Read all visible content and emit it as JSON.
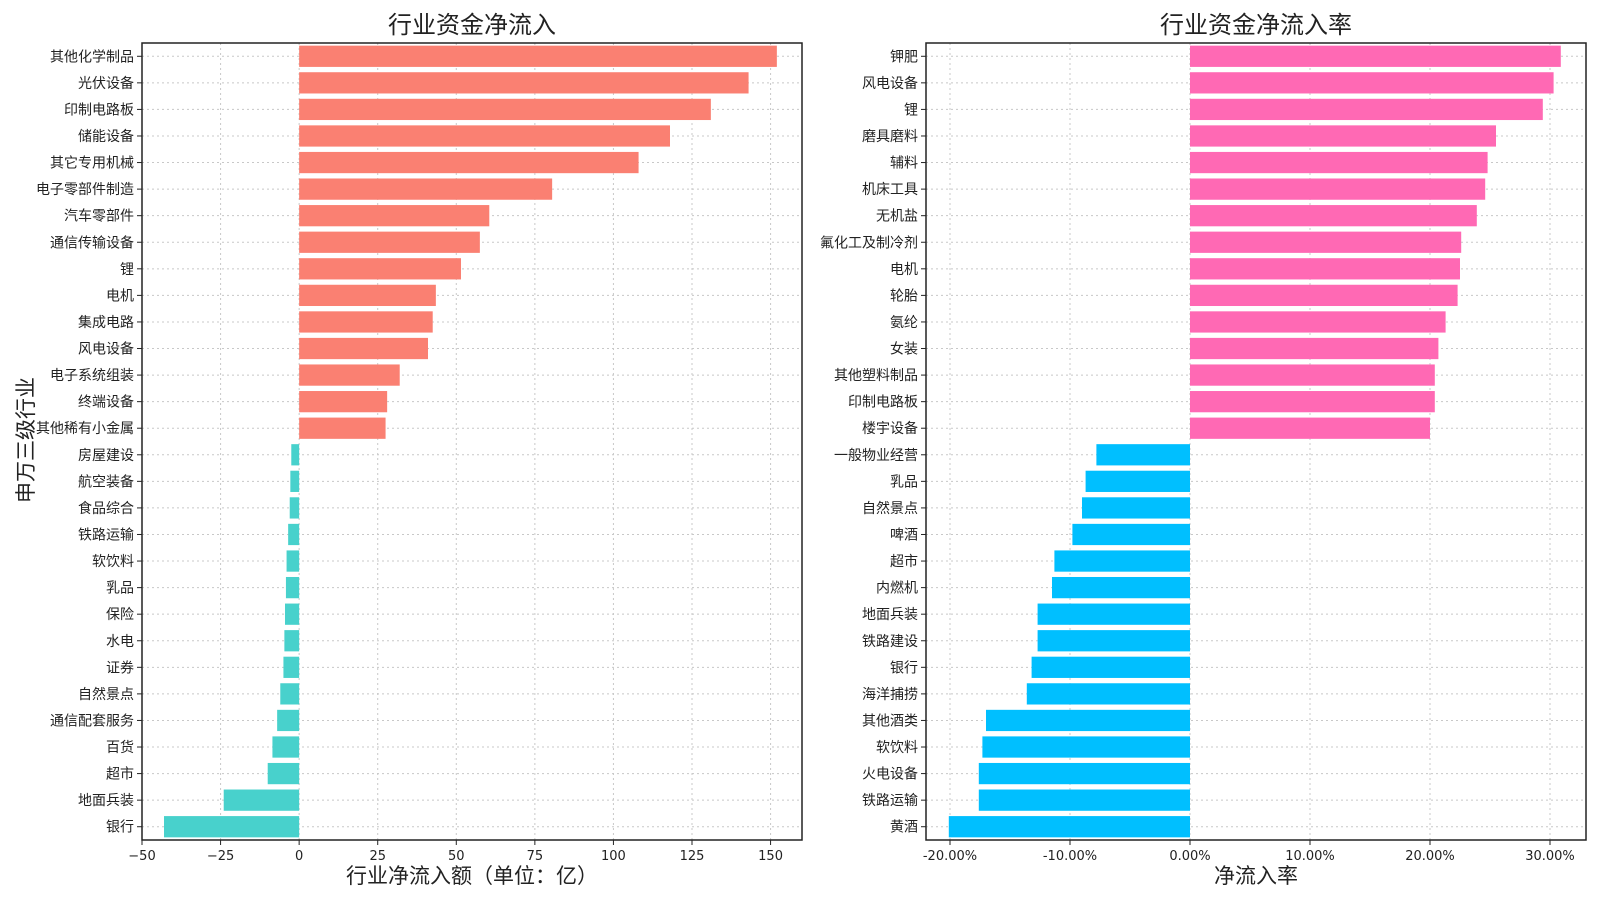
{
  "figure": {
    "ylabel": "申万三级行业"
  },
  "chart_data": [
    {
      "type": "bar",
      "orientation": "horizontal",
      "title": "行业资金净流入",
      "xlabel": "行业净流入额（单位：亿）",
      "ylabel": "申万三级行业",
      "xlim": [
        -50,
        160
      ],
      "xticks": [
        -50,
        -25,
        0,
        25,
        50,
        75,
        100,
        125,
        150
      ],
      "tick_format": "minus",
      "grid": true,
      "colors": {
        "positive": "#fa8072",
        "negative": "#48d1cc"
      },
      "categories": [
        "其他化学制品",
        "光伏设备",
        "印制电路板",
        "储能设备",
        "其它专用机械",
        "电子零部件制造",
        "汽车零部件",
        "通信传输设备",
        "锂",
        "电机",
        "集成电路",
        "风电设备",
        "电子系统组装",
        "终端设备",
        "其他稀有小金属",
        "房屋建设",
        "航空装备",
        "食品综合",
        "铁路运输",
        "软饮料",
        "乳品",
        "保险",
        "水电",
        "证券",
        "自然景点",
        "通信配套服务",
        "百货",
        "超市",
        "地面兵装",
        "银行"
      ],
      "values": [
        152,
        143,
        131,
        118,
        108,
        80.5,
        60.5,
        57.5,
        51.5,
        43.5,
        42.5,
        41,
        32,
        28,
        27.5,
        -2.5,
        -2.8,
        -3,
        -3.5,
        -4,
        -4.2,
        -4.5,
        -4.7,
        -5,
        -6,
        -7,
        -8.5,
        -10,
        -24,
        -43
      ]
    },
    {
      "type": "bar",
      "orientation": "horizontal",
      "title": "行业资金净流入率",
      "xlabel": "净流入率",
      "xlim": [
        -22,
        33
      ],
      "xticks": [
        -20,
        -10,
        0,
        10,
        20,
        30
      ],
      "tick_format": "percent",
      "grid": true,
      "colors": {
        "positive": "#ff69b4",
        "negative": "#00bfff"
      },
      "categories": [
        "钾肥",
        "风电设备",
        "锂",
        "磨具磨料",
        "辅料",
        "机床工具",
        "无机盐",
        "氟化工及制冷剂",
        "电机",
        "轮胎",
        "氨纶",
        "女装",
        "其他塑料制品",
        "印制电路板",
        "楼宇设备",
        "一般物业经营",
        "乳品",
        "自然景点",
        "啤酒",
        "超市",
        "内燃机",
        "地面兵装",
        "铁路建设",
        "银行",
        "海洋捕捞",
        "其他酒类",
        "软饮料",
        "火电设备",
        "铁路运输",
        "黄酒"
      ],
      "values": [
        30.9,
        30.3,
        29.4,
        25.5,
        24.8,
        24.6,
        23.9,
        22.6,
        22.5,
        22.3,
        21.3,
        20.7,
        20.4,
        20.4,
        20.0,
        -7.8,
        -8.7,
        -9.0,
        -9.8,
        -11.3,
        -11.5,
        -12.7,
        -12.7,
        -13.2,
        -13.6,
        -17.0,
        -17.3,
        -17.6,
        -17.6,
        -20.1
      ]
    }
  ]
}
